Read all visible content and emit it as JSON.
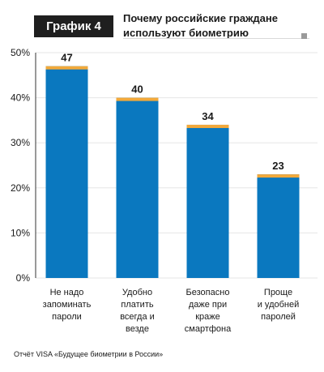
{
  "header": {
    "badge": "График 4",
    "title_line1": "Почему российские граждане",
    "title_line2": "используют биометрию"
  },
  "chart_data": {
    "type": "bar",
    "categories": [
      [
        "Не надо",
        "запоминать",
        "пароли"
      ],
      [
        "Удобно",
        "платить",
        "всегда и",
        "везде"
      ],
      [
        "Безопасно",
        "даже при",
        "краже",
        "смартфона"
      ],
      [
        "Проще",
        "и удобней",
        "паролей"
      ]
    ],
    "values": [
      47,
      40,
      34,
      23
    ],
    "value_labels": [
      "47",
      "40",
      "34",
      "23"
    ],
    "yticks": [
      "0%",
      "10%",
      "20%",
      "30%",
      "40%",
      "50%"
    ],
    "ylim": [
      0,
      50
    ],
    "grid": true,
    "colors": {
      "bar": "#0a78bf",
      "cap": "#f2a93b",
      "grid": "#e6e6e6",
      "axis": "#333333"
    }
  },
  "footer": {
    "source": "Отчёт VISA «Будущее биометрии в России»"
  }
}
